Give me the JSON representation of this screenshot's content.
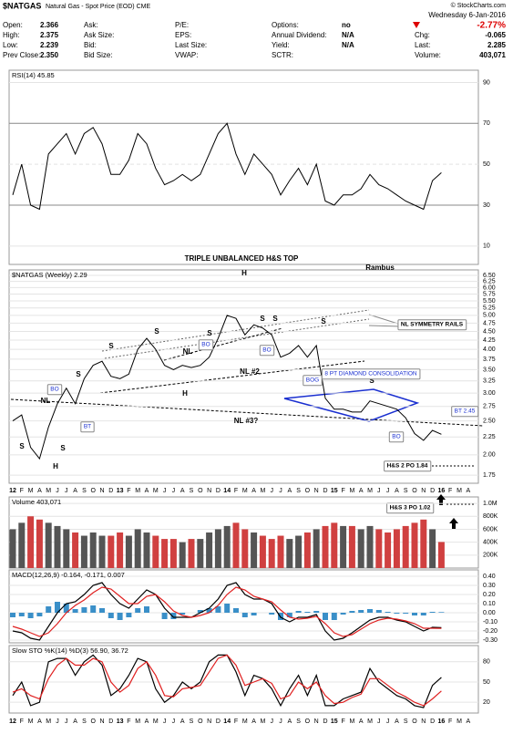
{
  "header": {
    "symbol": "$NATGAS",
    "name": "Natural Gas - Spot Price (EOD) CME",
    "date": "Wednesday 6-Jan-2016",
    "credit": "© StockCharts.com",
    "change_pct": "-2.77%",
    "columns": [
      [
        {
          "label": "Open:",
          "value": "2.366"
        },
        {
          "label": "High:",
          "value": "2.375"
        },
        {
          "label": "Low:",
          "value": "2.239"
        },
        {
          "label": "Prev Close:",
          "value": "2.350"
        }
      ],
      [
        {
          "label": "Ask:"
        },
        {
          "label": "Ask Size:"
        },
        {
          "label": "Bid:"
        },
        {
          "label": "Bid Size:"
        }
      ],
      [
        {
          "label": "P/E:"
        },
        {
          "label": "EPS:"
        },
        {
          "label": "Last Size:"
        },
        {
          "label": "VWAP:"
        }
      ],
      [
        {
          "label": "Options:",
          "value": "no"
        },
        {
          "label": "Annual Dividend:",
          "value": "N/A"
        },
        {
          "label": "Yield:",
          "value": "N/A"
        },
        {
          "label": "SCTR:"
        }
      ]
    ],
    "right": [
      {
        "label": "Chg:",
        "value": "-0.065"
      },
      {
        "label": "Last:",
        "value": "2.285"
      },
      {
        "label": "Volume:",
        "value": "403,071"
      }
    ]
  },
  "chart_data": [
    {
      "type": "line",
      "label": "RSI(14) 45.85",
      "color": "#000000",
      "values": [
        35,
        50,
        30,
        28,
        55,
        60,
        65,
        55,
        65,
        68,
        60,
        45,
        45,
        52,
        65,
        60,
        48,
        40,
        42,
        45,
        42,
        45,
        55,
        65,
        70,
        55,
        45,
        55,
        50,
        45,
        35,
        42,
        48,
        40,
        50,
        32,
        30,
        35,
        35,
        38,
        45,
        40,
        38,
        35,
        32,
        30,
        28,
        42,
        45.85,
        null,
        null,
        null
      ],
      "ylim": [
        1,
        96
      ],
      "yticks": [
        10,
        30,
        50,
        70,
        90
      ]
    },
    {
      "type": "line",
      "label": "$NATGAS (Weekly) 2.29",
      "color": "#000000",
      "log_scale": true,
      "categories": [
        "12",
        "F",
        "M",
        "A",
        "M",
        "J",
        "J",
        "A",
        "S",
        "O",
        "N",
        "D",
        "13",
        "F",
        "M",
        "A",
        "M",
        "J",
        "J",
        "A",
        "S",
        "O",
        "N",
        "D",
        "14",
        "F",
        "M",
        "A",
        "M",
        "J",
        "J",
        "A",
        "S",
        "O",
        "N",
        "D",
        "15",
        "F",
        "M",
        "A",
        "M",
        "J",
        "J",
        "A",
        "S",
        "O",
        "N",
        "D",
        "16",
        "F",
        "M",
        "A"
      ],
      "values": [
        2.5,
        2.6,
        2.1,
        1.95,
        2.4,
        2.8,
        3.1,
        2.8,
        3.3,
        3.6,
        3.7,
        3.35,
        3.3,
        3.4,
        4.0,
        4.3,
        4.0,
        3.6,
        3.5,
        3.6,
        3.55,
        3.6,
        3.8,
        4.3,
        5.0,
        4.9,
        4.4,
        4.7,
        4.6,
        4.4,
        3.8,
        3.9,
        4.1,
        3.8,
        4.1,
        2.9,
        2.7,
        2.7,
        2.65,
        2.65,
        2.85,
        2.8,
        2.75,
        2.7,
        2.55,
        2.3,
        2.2,
        2.35,
        2.29,
        null,
        null,
        null
      ],
      "ylim": [
        1.66,
        6.74
      ],
      "yticks": [
        {
          "value": 1.75,
          "label": "1.75"
        },
        {
          "value": 2,
          "label": "2.00"
        },
        {
          "value": 2.25,
          "label": "2.25"
        },
        {
          "value": 2.5,
          "label": "2.50"
        },
        {
          "value": 2.75,
          "label": "2.75"
        },
        {
          "value": 3,
          "label": "3.00"
        },
        {
          "value": 3.25,
          "label": "3.25"
        },
        {
          "value": 3.5,
          "label": "3.50"
        },
        {
          "value": 3.75,
          "label": "3.75"
        },
        {
          "value": 4,
          "label": "4.00"
        },
        {
          "value": 4.25,
          "label": "4.25"
        },
        {
          "value": 4.5,
          "label": "4.50"
        },
        {
          "value": 4.75,
          "label": "4.75"
        },
        {
          "value": 5,
          "label": "5.00"
        },
        {
          "value": 5.25,
          "label": "5.25"
        },
        {
          "value": 5.5,
          "label": "5.50"
        },
        {
          "value": 5.75,
          "label": "5.75"
        },
        {
          "value": 6,
          "label": "6.00"
        },
        {
          "value": 6.25,
          "label": "6.25"
        },
        {
          "value": 6.5,
          "label": "6.50"
        }
      ],
      "annotations": [
        "TRIPLE UNBALANCED  H&S TOP",
        "Rambus",
        "H",
        "S",
        "S",
        "S",
        "S",
        "S",
        "S",
        "S",
        "S",
        "S",
        "S",
        "H",
        "H",
        "NL",
        "NL",
        "NL #2",
        "NL #3?",
        "BO",
        "BT",
        "BO",
        "BO",
        "BOG",
        "BO",
        "BT 2.45",
        "NL SYMMETRY RAILS",
        "8 PT DIAMOND CONSOLIDATION",
        "H&S 2 PO 1.84",
        "H&S 3 PO 1.02"
      ]
    },
    {
      "type": "bar",
      "label": "Volume 403,071",
      "up_color": "#555555",
      "down_color": "#d04040",
      "values": [
        600000,
        700000,
        800000,
        750000,
        700000,
        650000,
        600000,
        550000,
        500000,
        550000,
        500000,
        500000,
        550000,
        500000,
        600000,
        550000,
        500000,
        450000,
        450000,
        400000,
        450000,
        450000,
        550000,
        600000,
        650000,
        700000,
        600000,
        550000,
        500000,
        450000,
        500000,
        450000,
        500000,
        550000,
        600000,
        650000,
        700000,
        650000,
        650000,
        600000,
        650000,
        600000,
        550000,
        600000,
        650000,
        700000,
        750000,
        600000,
        403071,
        null,
        null,
        null
      ],
      "ylim": [
        0,
        1100000
      ],
      "yticks": [
        {
          "value": 200000,
          "label": "200K"
        },
        {
          "value": 400000,
          "label": "400K"
        },
        {
          "value": 600000,
          "label": "600K"
        },
        {
          "value": 800000,
          "label": "800K"
        },
        {
          "value": 1000000,
          "label": "1.0M"
        }
      ]
    },
    {
      "type": "line",
      "label": "MACD(12,26,9) -0.164, -0.171, 0.007",
      "series": [
        {
          "name": "MACD",
          "color": "#000000",
          "values": [
            -0.2,
            -0.22,
            -0.28,
            -0.3,
            -0.15,
            0,
            0.1,
            0.12,
            0.2,
            0.3,
            0.33,
            0.2,
            0.1,
            0.05,
            0.15,
            0.25,
            0.2,
            0.05,
            -0.05,
            -0.05,
            -0.05,
            0,
            0.05,
            0.15,
            0.3,
            0.33,
            0.2,
            0.15,
            0.15,
            0.1,
            -0.05,
            -0.1,
            -0.05,
            -0.05,
            -0.02,
            -0.2,
            -0.3,
            -0.28,
            -0.22,
            -0.15,
            -0.08,
            -0.05,
            -0.05,
            -0.08,
            -0.1,
            -0.15,
            -0.2,
            -0.16,
            -0.164,
            null,
            null,
            null
          ]
        },
        {
          "name": "Signal",
          "color": "#e02020",
          "values": [
            -0.15,
            -0.18,
            -0.22,
            -0.26,
            -0.22,
            -0.12,
            0,
            0.08,
            0.14,
            0.22,
            0.28,
            0.26,
            0.18,
            0.1,
            0.1,
            0.18,
            0.2,
            0.12,
            0.02,
            -0.03,
            -0.05,
            -0.03,
            0,
            0.08,
            0.2,
            0.28,
            0.25,
            0.18,
            0.15,
            0.12,
            0.03,
            -0.05,
            -0.07,
            -0.06,
            -0.04,
            -0.12,
            -0.22,
            -0.26,
            -0.24,
            -0.18,
            -0.12,
            -0.08,
            -0.06,
            -0.07,
            -0.09,
            -0.12,
            -0.17,
            -0.17,
            -0.171,
            null,
            null,
            null
          ]
        },
        {
          "name": "Histogram",
          "color": "#3a8fc8",
          "type": "bar",
          "values": [
            -0.05,
            -0.04,
            -0.06,
            -0.04,
            0.07,
            0.12,
            0.1,
            0.04,
            0.06,
            0.08,
            0.05,
            -0.06,
            -0.08,
            -0.05,
            0.05,
            0.07,
            0,
            -0.07,
            -0.07,
            -0.02,
            0,
            0.03,
            0.05,
            0.07,
            0.1,
            0.05,
            -0.05,
            -0.03,
            0,
            -0.02,
            -0.08,
            -0.05,
            0.02,
            0.01,
            0.02,
            -0.08,
            -0.08,
            -0.02,
            0.02,
            0.03,
            0.04,
            0.03,
            0.01,
            -0.01,
            -0.01,
            -0.03,
            -0.03,
            0.01,
            0.007,
            null,
            null,
            null
          ]
        }
      ],
      "ylim": [
        -0.33,
        0.47
      ],
      "yticks": [
        {
          "value": -0.3,
          "label": "-0.30"
        },
        {
          "value": -0.2,
          "label": "-0.20"
        },
        {
          "value": -0.1,
          "label": "-0.10"
        },
        {
          "value": 0,
          "label": "0.00"
        },
        {
          "value": 0.1,
          "label": "0.10"
        },
        {
          "value": 0.2,
          "label": "0.20"
        },
        {
          "value": 0.3,
          "label": "0.30"
        },
        {
          "value": 0.4,
          "label": "0.40"
        }
      ]
    },
    {
      "type": "line",
      "label": "Slow STO %K(14) %D(3) 56.90, 36.72",
      "categories": [
        "12",
        "F",
        "M",
        "A",
        "M",
        "J",
        "J",
        "A",
        "S",
        "O",
        "N",
        "D",
        "13",
        "F",
        "M",
        "A",
        "M",
        "J",
        "J",
        "A",
        "S",
        "O",
        "N",
        "D",
        "14",
        "F",
        "M",
        "A",
        "M",
        "J",
        "J",
        "A",
        "S",
        "O",
        "N",
        "D",
        "15",
        "F",
        "M",
        "A",
        "M",
        "J",
        "J",
        "A",
        "S",
        "O",
        "N",
        "D",
        "16",
        "F",
        "M",
        "A"
      ],
      "series": [
        {
          "name": "%K",
          "color": "#000000",
          "values": [
            30,
            50,
            15,
            20,
            80,
            85,
            85,
            60,
            80,
            90,
            75,
            30,
            40,
            60,
            85,
            80,
            40,
            20,
            30,
            50,
            40,
            50,
            80,
            90,
            90,
            65,
            30,
            60,
            55,
            40,
            15,
            40,
            60,
            30,
            60,
            15,
            15,
            25,
            30,
            35,
            70,
            50,
            40,
            30,
            25,
            15,
            12,
            45,
            56.9,
            null,
            null,
            null
          ]
        },
        {
          "name": "%D",
          "color": "#e02020",
          "values": [
            35,
            40,
            30,
            25,
            55,
            75,
            85,
            75,
            75,
            85,
            80,
            50,
            35,
            45,
            70,
            80,
            60,
            30,
            28,
            40,
            42,
            45,
            65,
            85,
            90,
            75,
            45,
            50,
            55,
            48,
            25,
            30,
            50,
            40,
            50,
            30,
            18,
            20,
            27,
            32,
            55,
            55,
            45,
            35,
            28,
            20,
            15,
            25,
            36.72,
            null,
            null,
            null
          ]
        }
      ],
      "ylim": [
        4,
        104
      ],
      "yticks": [
        20,
        50,
        80
      ]
    }
  ]
}
